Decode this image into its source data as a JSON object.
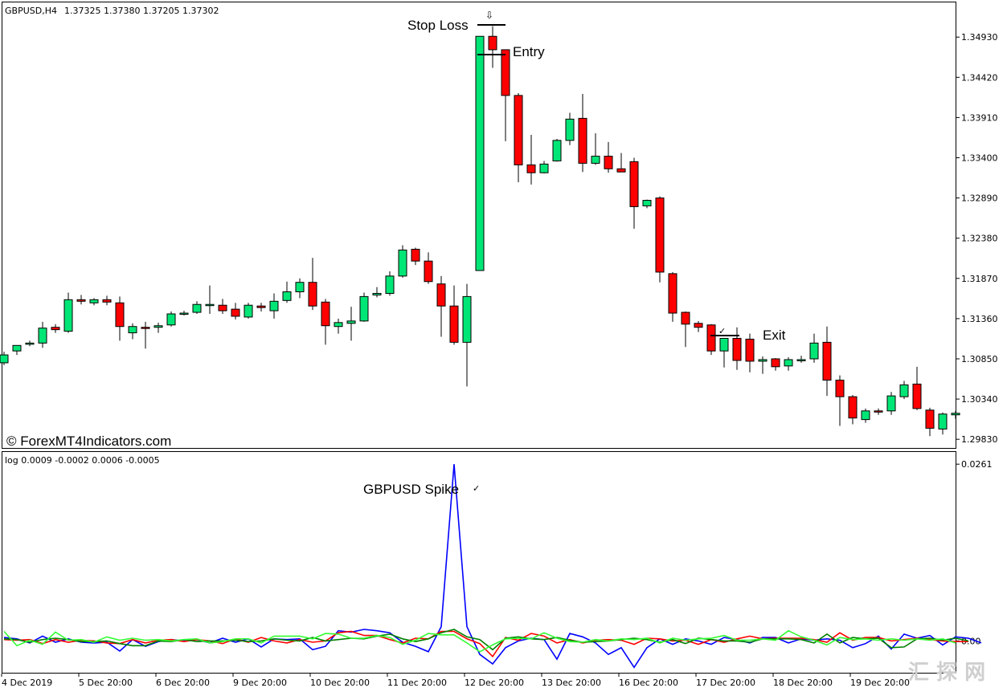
{
  "window": {
    "symbol_header": "GBPUSD,H4",
    "ohlc_header": "1.37325 1.37380 1.37205 1.37302",
    "watermark": "© ForexMT4Indicators.com",
    "corner_watermark": "汇 探 网"
  },
  "annotations": {
    "stop_loss": "Stop Loss",
    "entry": "Entry",
    "exit": "Exit",
    "spike": "GBPUSD Spike",
    "down_arrow": "⇩",
    "check_exit": "✓",
    "check_spike": "✓"
  },
  "indicator": {
    "header": "log 0.0009 -0.0002 0.0006 -0.0005"
  },
  "colors": {
    "bull": "#00e676",
    "bear": "#ff0000",
    "series_blue": "#0000ff",
    "series_red": "#ff0000",
    "series_dkgreen": "#008000",
    "series_lime": "#33ff33"
  },
  "chart_data": [
    {
      "type": "candlestick",
      "title": "GBPUSD,H4",
      "y_ticks": [
        "1.34930",
        "1.34420",
        "1.33910",
        "1.33400",
        "1.32890",
        "1.32380",
        "1.31870",
        "1.31360",
        "1.30850",
        "1.30340",
        "1.29830"
      ],
      "x_ticks": [
        "4 Dec 2019",
        "5 Dec 20:00",
        "6 Dec 20:00",
        "9 Dec 20:00",
        "10 Dec 20:00",
        "11 Dec 20:00",
        "12 Dec 20:00",
        "13 Dec 20:00",
        "16 Dec 20:00",
        "17 Dec 20:00",
        "18 Dec 20:00",
        "19 Dec 20:00"
      ],
      "ylim": [
        1.2972,
        1.3537
      ],
      "grid": false,
      "candles": [
        {
          "o": 1.308,
          "h": 1.3094,
          "l": 1.3077,
          "c": 1.309
        },
        {
          "o": 1.3095,
          "h": 1.3102,
          "l": 1.309,
          "c": 1.3102
        },
        {
          "o": 1.3104,
          "h": 1.3108,
          "l": 1.3101,
          "c": 1.3105
        },
        {
          "o": 1.3105,
          "h": 1.3132,
          "l": 1.3099,
          "c": 1.3124
        },
        {
          "o": 1.3125,
          "h": 1.3129,
          "l": 1.3118,
          "c": 1.3122
        },
        {
          "o": 1.312,
          "h": 1.3169,
          "l": 1.3118,
          "c": 1.316
        },
        {
          "o": 1.316,
          "h": 1.3166,
          "l": 1.3154,
          "c": 1.3158
        },
        {
          "o": 1.3156,
          "h": 1.3162,
          "l": 1.3153,
          "c": 1.316
        },
        {
          "o": 1.316,
          "h": 1.3165,
          "l": 1.3153,
          "c": 1.3157
        },
        {
          "o": 1.3156,
          "h": 1.3164,
          "l": 1.3108,
          "c": 1.3126
        },
        {
          "o": 1.3118,
          "h": 1.313,
          "l": 1.311,
          "c": 1.3126
        },
        {
          "o": 1.3125,
          "h": 1.3132,
          "l": 1.3098,
          "c": 1.3124
        },
        {
          "o": 1.3125,
          "h": 1.3131,
          "l": 1.3118,
          "c": 1.3127
        },
        {
          "o": 1.3128,
          "h": 1.3145,
          "l": 1.3126,
          "c": 1.3142
        },
        {
          "o": 1.3143,
          "h": 1.3146,
          "l": 1.314,
          "c": 1.3143
        },
        {
          "o": 1.3144,
          "h": 1.3158,
          "l": 1.3142,
          "c": 1.3154
        },
        {
          "o": 1.3154,
          "h": 1.3178,
          "l": 1.3142,
          "c": 1.3154
        },
        {
          "o": 1.3153,
          "h": 1.3161,
          "l": 1.3142,
          "c": 1.3146
        },
        {
          "o": 1.3148,
          "h": 1.3156,
          "l": 1.3135,
          "c": 1.3139
        },
        {
          "o": 1.3138,
          "h": 1.3156,
          "l": 1.3136,
          "c": 1.3153
        },
        {
          "o": 1.3152,
          "h": 1.3156,
          "l": 1.3145,
          "c": 1.315
        },
        {
          "o": 1.3146,
          "h": 1.3168,
          "l": 1.3136,
          "c": 1.3158
        },
        {
          "o": 1.3159,
          "h": 1.3183,
          "l": 1.3156,
          "c": 1.317
        },
        {
          "o": 1.317,
          "h": 1.3187,
          "l": 1.3162,
          "c": 1.3182
        },
        {
          "o": 1.3182,
          "h": 1.3213,
          "l": 1.3147,
          "c": 1.3152
        },
        {
          "o": 1.3157,
          "h": 1.3161,
          "l": 1.3103,
          "c": 1.3127
        },
        {
          "o": 1.3126,
          "h": 1.3136,
          "l": 1.3117,
          "c": 1.3131
        },
        {
          "o": 1.313,
          "h": 1.3151,
          "l": 1.3108,
          "c": 1.3133
        },
        {
          "o": 1.3133,
          "h": 1.3169,
          "l": 1.3132,
          "c": 1.3164
        },
        {
          "o": 1.3166,
          "h": 1.3176,
          "l": 1.3163,
          "c": 1.3168
        },
        {
          "o": 1.3168,
          "h": 1.3196,
          "l": 1.3165,
          "c": 1.319
        },
        {
          "o": 1.319,
          "h": 1.3229,
          "l": 1.3188,
          "c": 1.3223
        },
        {
          "o": 1.3224,
          "h": 1.3226,
          "l": 1.3204,
          "c": 1.3209
        },
        {
          "o": 1.3209,
          "h": 1.322,
          "l": 1.318,
          "c": 1.3183
        },
        {
          "o": 1.318,
          "h": 1.319,
          "l": 1.3113,
          "c": 1.3152
        },
        {
          "o": 1.3152,
          "h": 1.3178,
          "l": 1.3103,
          "c": 1.3106
        },
        {
          "o": 1.3106,
          "h": 1.318,
          "l": 1.305,
          "c": 1.3164
        },
        {
          "o": 1.3197,
          "h": 1.3494,
          "l": 1.3197,
          "c": 1.3494
        },
        {
          "o": 1.3494,
          "h": 1.3507,
          "l": 1.3454,
          "c": 1.3477
        },
        {
          "o": 1.3477,
          "h": 1.3477,
          "l": 1.3361,
          "c": 1.3419
        },
        {
          "o": 1.3419,
          "h": 1.3422,
          "l": 1.3309,
          "c": 1.3331
        },
        {
          "o": 1.3331,
          "h": 1.3369,
          "l": 1.3306,
          "c": 1.3321
        },
        {
          "o": 1.3321,
          "h": 1.3336,
          "l": 1.332,
          "c": 1.3332
        },
        {
          "o": 1.3336,
          "h": 1.3364,
          "l": 1.3335,
          "c": 1.3362
        },
        {
          "o": 1.3362,
          "h": 1.3397,
          "l": 1.3356,
          "c": 1.3389
        },
        {
          "o": 1.339,
          "h": 1.3421,
          "l": 1.3322,
          "c": 1.3333
        },
        {
          "o": 1.3333,
          "h": 1.3371,
          "l": 1.3331,
          "c": 1.3342
        },
        {
          "o": 1.3342,
          "h": 1.336,
          "l": 1.3321,
          "c": 1.3326
        },
        {
          "o": 1.3326,
          "h": 1.3346,
          "l": 1.3322,
          "c": 1.3322
        },
        {
          "o": 1.3335,
          "h": 1.334,
          "l": 1.325,
          "c": 1.3278
        },
        {
          "o": 1.3279,
          "h": 1.3287,
          "l": 1.3276,
          "c": 1.3286
        },
        {
          "o": 1.3289,
          "h": 1.3291,
          "l": 1.3182,
          "c": 1.3195
        },
        {
          "o": 1.3193,
          "h": 1.3195,
          "l": 1.3132,
          "c": 1.3143
        },
        {
          "o": 1.3144,
          "h": 1.3145,
          "l": 1.31,
          "c": 1.3129
        },
        {
          "o": 1.313,
          "h": 1.3133,
          "l": 1.3119,
          "c": 1.3125
        },
        {
          "o": 1.3128,
          "h": 1.3129,
          "l": 1.309,
          "c": 1.3095
        },
        {
          "o": 1.3095,
          "h": 1.3111,
          "l": 1.3074,
          "c": 1.3111
        },
        {
          "o": 1.3111,
          "h": 1.3125,
          "l": 1.3071,
          "c": 1.3083
        },
        {
          "o": 1.311,
          "h": 1.3117,
          "l": 1.3068,
          "c": 1.3082
        },
        {
          "o": 1.3082,
          "h": 1.3088,
          "l": 1.3066,
          "c": 1.3084
        },
        {
          "o": 1.3085,
          "h": 1.3086,
          "l": 1.307,
          "c": 1.3075
        },
        {
          "o": 1.3076,
          "h": 1.3087,
          "l": 1.307,
          "c": 1.3084
        },
        {
          "o": 1.3084,
          "h": 1.3089,
          "l": 1.308,
          "c": 1.3084
        },
        {
          "o": 1.3085,
          "h": 1.3117,
          "l": 1.308,
          "c": 1.3105
        },
        {
          "o": 1.3106,
          "h": 1.3126,
          "l": 1.3038,
          "c": 1.3058
        },
        {
          "o": 1.3058,
          "h": 1.3064,
          "l": 1.3,
          "c": 1.3037
        },
        {
          "o": 1.3037,
          "h": 1.3039,
          "l": 1.3002,
          "c": 1.301
        },
        {
          "o": 1.3008,
          "h": 1.3022,
          "l": 1.3004,
          "c": 1.3019
        },
        {
          "o": 1.3019,
          "h": 1.3022,
          "l": 1.3014,
          "c": 1.3018
        },
        {
          "o": 1.3019,
          "h": 1.3043,
          "l": 1.3014,
          "c": 1.3038
        },
        {
          "o": 1.3037,
          "h": 1.3057,
          "l": 1.3034,
          "c": 1.3052
        },
        {
          "o": 1.3053,
          "h": 1.3075,
          "l": 1.302,
          "c": 1.3022
        },
        {
          "o": 1.302,
          "h": 1.3023,
          "l": 1.2987,
          "c": 1.2997
        },
        {
          "o": 1.2996,
          "h": 1.3017,
          "l": 1.2989,
          "c": 1.3015
        },
        {
          "o": 1.3014,
          "h": 1.3019,
          "l": 1.3009,
          "c": 1.3016
        }
      ]
    },
    {
      "type": "line",
      "title": "log 0.0009 -0.0002 0.0006 -0.0005",
      "y_ticks": [
        "0.0261",
        "0.00"
      ],
      "ylim": [
        -0.0047,
        0.0279
      ],
      "series": [
        {
          "color": "#0000ff",
          "values": [
            0.0005,
            0.0003,
            -0.0003,
            0.0007,
            -0.0002,
            0.0003,
            -0.0002,
            -0.0003,
            -0.0002,
            -0.0015,
            0.0002,
            -0.0008,
            -0.0001,
            0.0002,
            0.0,
            0.0002,
            -0.0003,
            0.0004,
            -0.0002,
            0.0003,
            -0.0009,
            0.0003,
            0.0002,
            0.0003,
            -0.0013,
            -0.0008,
            0.0015,
            0.0013,
            0.0017,
            0.0015,
            0.0012,
            -0.0002,
            -0.0008,
            -0.0016,
            0.0021,
            0.0261,
            0.0021,
            -0.002,
            -0.0034,
            -0.001,
            0.0,
            0.0004,
            0.0002,
            -0.0027,
            0.0011,
            0.0006,
            -0.0003,
            -0.002,
            -0.001,
            -0.0039,
            -0.001,
            0.0003,
            -0.0005,
            0.0003,
            0.0,
            -0.0005,
            0.0005,
            0.0002,
            -0.0003,
            0.0005,
            0.0005,
            -0.0003,
            0.0003,
            0.0001,
            0.0003,
            0.0001,
            -0.001,
            -0.0004,
            0.0007,
            -0.0012,
            0.001,
            0.0004,
            0.0008,
            -0.0006,
            0.0006,
            0.0004,
            -0.0003
          ]
        },
        {
          "color": "#ff0000",
          "values": [
            0.0002,
            0.0001,
            0.0002,
            -0.0004,
            0.0002,
            -0.0002,
            0.0001,
            0.0,
            -0.0003,
            -0.0004,
            0.0002,
            -0.0003,
            0.0001,
            0.0002,
            -0.0001,
            0.0002,
            0.0,
            -0.0004,
            0.0003,
            -0.0002,
            0.0005,
            0.0,
            -0.0003,
            0.0002,
            -0.0002,
            0.0,
            0.0012,
            0.0014,
            0.0008,
            0.0008,
            0.0002,
            -0.0003,
            0.0004,
            0.0003,
            0.0014,
            0.0014,
            0.0003,
            -0.0004,
            -0.0023,
            0.0005,
            0.0001,
            0.0011,
            0.0007,
            -0.0003,
            0.0002,
            -0.0003,
            0.0001,
            0.0002,
            0.0001,
            -0.0005,
            0.0004,
            0.0003,
            0.0,
            0.0001,
            -0.0005,
            0.0002,
            -0.0002,
            0.0003,
            0.0007,
            0.0003,
            0.0004,
            0.0004,
            0.0004,
            0.0002,
            -0.0002,
            0.0012,
            0.0001,
            0.0005,
            0.0005,
            0.0,
            0.0002,
            0.0004,
            0.0002,
            0.0,
            -0.0001,
            -0.0001
          ]
        },
        {
          "color": "#008000",
          "values": [
            0.0003,
            0.0002,
            -0.0002,
            0.0002,
            0.0004,
            0.0002,
            -0.0001,
            -0.0001,
            0.0,
            -0.0004,
            -0.0007,
            -0.0007,
            0.0,
            -0.0001,
            0.0002,
            -0.0001,
            0.0,
            0.0,
            0.0001,
            -0.0001,
            0.0,
            0.0003,
            0.0001,
            0.0,
            0.0005,
            0.0,
            0.0002,
            0.0004,
            0.0003,
            0.0007,
            0.001,
            0.0003,
            -0.0001,
            0.0003,
            0.0012,
            0.0017,
            0.0006,
            0.0002,
            -0.0013,
            0.0004,
            0.0006,
            0.0003,
            0.0002,
            0.0005,
            0.0001,
            -0.0002,
            -0.0001,
            0.0,
            0.0002,
            0.0004,
            0.0002,
            -0.0002,
            0.0002,
            -0.0004,
            0.0004,
            0.0002,
            0.0,
            0.0,
            -0.0002,
            0.0003,
            0.0003,
            0.0003,
            0.0002,
            -0.0003,
            0.001,
            -0.0003,
            0.0005,
            0.0003,
            0.0004,
            -0.001,
            -0.0009,
            0.0003,
            0.0004,
            0.0001,
            0.0004,
            0.0
          ]
        },
        {
          "color": "#33ff33",
          "values": [
            0.0014,
            -0.0007,
            0.0001,
            -0.0005,
            0.0013,
            0.0001,
            0.0002,
            -0.0002,
            0.0006,
            0.0001,
            0.0004,
            0.0001,
            0.0002,
            0.0,
            0.0002,
            0.0003,
            -0.0003,
            -0.0001,
            0.0003,
            0.0003,
            -0.0003,
            0.0007,
            0.0007,
            0.0007,
            0.0003,
            0.0011,
            0.001,
            0.0004,
            0.0004,
            0.0008,
            0.0005,
            -0.0005,
            0.0001,
            0.0011,
            0.0009,
            0.0009,
            -0.0003,
            -0.0016,
            -0.0006,
            0.0003,
            0.0004,
            0.0003,
            0.0012,
            0.0004,
            -0.0001,
            -0.0002,
            0.0002,
            0.0,
            0.0003,
            0.0002,
            0.0004,
            -0.0003,
            0.0004,
            0.0001,
            0.0003,
            0.0004,
            0.0008,
            0.0001,
            0.0001,
            0.0003,
            0.0001,
            0.0015,
            0.0006,
            0.0001,
            -0.0006,
            0.0005,
            0.0002,
            0.0003,
            0.0001,
            0.0003,
            0.0001,
            0.0003,
            0.0001,
            0.0003,
            -0.0003
          ]
        }
      ]
    }
  ]
}
